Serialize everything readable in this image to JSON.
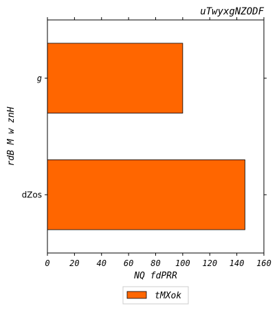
{
  "chart_data": {
    "type": "bar",
    "orientation": "horizontal",
    "title": "uTwyxgNZODF",
    "xlabel": "NQ fdPRR",
    "ylabel": "rdB M w  znH",
    "categories": [
      "dZos",
      "g"
    ],
    "series": [
      {
        "name": "tMXok",
        "values": [
          146,
          100
        ],
        "color": "#ff6600"
      }
    ],
    "xlim": [
      0,
      160
    ],
    "xticks": [
      "0",
      "20",
      "40",
      "60",
      "80",
      "100",
      "120",
      "140",
      "160"
    ],
    "grid": false,
    "legend_position": "bottom-center"
  }
}
